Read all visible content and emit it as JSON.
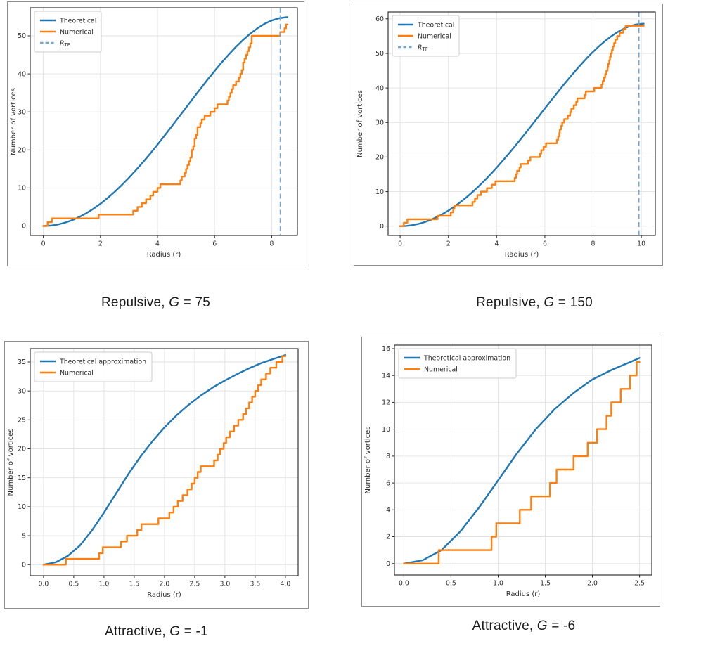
{
  "colors": {
    "theoretical": "#1f77b4",
    "numerical": "#ff7f0e",
    "rtf_line": "#6fa8d6",
    "grid": "#e2e2e2",
    "spine": "#222222",
    "tick_text": "#2b2b2b",
    "legend_border": "#cccccc",
    "caption_text": "#1b1b1b"
  },
  "chart_data": [
    {
      "id": "repulsive-g75",
      "type": "line",
      "caption": {
        "prefix": "Repulsive, ",
        "variable": "G",
        "suffix": " = 75"
      },
      "xlabel": "Radius (r)",
      "ylabel": "Number of vortices",
      "xlim": [
        -0.457,
        8.9
      ],
      "ylim": [
        -2.5,
        57.4
      ],
      "grid": true,
      "xticks": {
        "values": [
          0,
          2,
          4,
          6,
          8
        ],
        "labels": [
          "0",
          "2",
          "4",
          "6",
          "8"
        ]
      },
      "yticks": {
        "values": [
          0,
          10,
          20,
          30,
          40,
          50
        ],
        "labels": [
          "0",
          "10",
          "20",
          "30",
          "40",
          "50"
        ]
      },
      "legend": {
        "position": "upper-left",
        "entries": [
          {
            "label": "Theoretical",
            "color_key": "theoretical",
            "dashed": false
          },
          {
            "label": "Numerical",
            "color_key": "numerical",
            "dashed": false
          },
          {
            "label": "R",
            "sub": "TF",
            "color_key": "rtf_line",
            "dashed": true
          }
        ]
      },
      "series": [
        {
          "name": "Theoretical",
          "type": "smooth",
          "color_key": "theoretical",
          "points": [
            [
              0,
              0
            ],
            [
              0.25,
              0.09
            ],
            [
              0.5,
              0.37
            ],
            [
              0.75,
              0.84
            ],
            [
              1,
              1.49
            ],
            [
              1.25,
              2.32
            ],
            [
              1.5,
              3.33
            ],
            [
              1.75,
              4.5
            ],
            [
              2,
              5.84
            ],
            [
              2.25,
              7.34
            ],
            [
              2.5,
              8.99
            ],
            [
              2.75,
              10.77
            ],
            [
              3,
              12.69
            ],
            [
              3.25,
              14.73
            ],
            [
              3.5,
              16.86
            ],
            [
              3.75,
              19.1
            ],
            [
              4,
              21.4
            ],
            [
              4.25,
              23.8
            ],
            [
              4.5,
              26.2
            ],
            [
              4.75,
              28.68
            ],
            [
              5,
              31.13
            ],
            [
              5.25,
              33.62
            ],
            [
              5.5,
              36.03
            ],
            [
              5.75,
              38.46
            ],
            [
              6,
              40.76
            ],
            [
              6.25,
              43.03
            ],
            [
              6.5,
              45.12
            ],
            [
              6.75,
              47.14
            ],
            [
              7,
              48.93
            ],
            [
              7.25,
              50.6
            ],
            [
              7.5,
              51.98
            ],
            [
              7.75,
              53.18
            ],
            [
              8,
              54.05
            ],
            [
              8.25,
              54.63
            ],
            [
              8.5,
              54.89
            ],
            [
              8.55,
              54.9
            ]
          ]
        },
        {
          "name": "Numerical",
          "type": "step",
          "color_key": "numerical",
          "start_x": 0,
          "end_x": 8.55,
          "jump_radii": [
            0.15,
            0.3,
            1.94,
            3.15,
            3.3,
            3.45,
            3.6,
            3.75,
            3.85,
            4.0,
            4.1,
            4.8,
            4.85,
            4.95,
            5.0,
            5.05,
            5.1,
            5.15,
            5.2,
            5.2,
            5.25,
            5.3,
            5.3,
            5.35,
            5.4,
            5.4,
            5.5,
            5.55,
            5.65,
            5.85,
            6.0,
            6.1,
            6.45,
            6.5,
            6.55,
            6.6,
            6.65,
            6.75,
            6.85,
            6.9,
            6.95,
            7.0,
            7.0,
            7.05,
            7.1,
            7.15,
            7.2,
            7.25,
            7.3,
            7.3,
            8.3,
            8.45,
            8.5
          ]
        },
        {
          "name": "R_TF",
          "type": "vline",
          "color_key": "rtf_line",
          "x": 8.3,
          "dashed": true
        }
      ]
    },
    {
      "id": "repulsive-g150",
      "type": "line",
      "caption": {
        "prefix": "Repulsive, ",
        "variable": "G",
        "suffix": " = 150"
      },
      "xlabel": "Radius (r)",
      "ylabel": "Number of vortices",
      "xlim": [
        -0.5,
        10.58
      ],
      "ylim": [
        -2.7,
        62.0
      ],
      "grid": true,
      "xticks": {
        "values": [
          0,
          2,
          4,
          6,
          8,
          10
        ],
        "labels": [
          "0",
          "2",
          "4",
          "6",
          "8",
          "10"
        ]
      },
      "yticks": {
        "values": [
          0,
          10,
          20,
          30,
          40,
          50,
          60
        ],
        "labels": [
          "0",
          "10",
          "20",
          "30",
          "40",
          "50",
          "60"
        ]
      },
      "legend": {
        "position": "upper-left",
        "entries": [
          {
            "label": "Theoretical",
            "color_key": "theoretical",
            "dashed": false
          },
          {
            "label": "Numerical",
            "color_key": "numerical",
            "dashed": false
          },
          {
            "label": "R",
            "sub": "TF",
            "color_key": "rtf_line",
            "dashed": true
          }
        ]
      },
      "series": [
        {
          "name": "Theoretical",
          "type": "smooth",
          "color_key": "theoretical",
          "points": [
            [
              0,
              0
            ],
            [
              0.25,
              0.07
            ],
            [
              0.5,
              0.29
            ],
            [
              0.75,
              0.64
            ],
            [
              1,
              1.14
            ],
            [
              1.25,
              1.78
            ],
            [
              1.5,
              2.56
            ],
            [
              1.75,
              3.47
            ],
            [
              2,
              4.51
            ],
            [
              2.25,
              5.67
            ],
            [
              2.5,
              6.96
            ],
            [
              2.75,
              8.37
            ],
            [
              3,
              9.88
            ],
            [
              3.25,
              11.51
            ],
            [
              3.5,
              13.23
            ],
            [
              3.75,
              15.05
            ],
            [
              4,
              16.94
            ],
            [
              4.25,
              18.92
            ],
            [
              4.5,
              20.96
            ],
            [
              4.75,
              23.06
            ],
            [
              5,
              25.2
            ],
            [
              5.25,
              27.39
            ],
            [
              5.5,
              29.6
            ],
            [
              5.75,
              31.84
            ],
            [
              6,
              34.06
            ],
            [
              6.25,
              36.29
            ],
            [
              6.5,
              38.49
            ],
            [
              6.75,
              40.66
            ],
            [
              7,
              42.78
            ],
            [
              7.25,
              44.84
            ],
            [
              7.5,
              46.81
            ],
            [
              7.75,
              48.7
            ],
            [
              8,
              50.46
            ],
            [
              8.25,
              52.12
            ],
            [
              8.5,
              53.61
            ],
            [
              8.75,
              54.95
            ],
            [
              9,
              56.11
            ],
            [
              9.25,
              57.08
            ],
            [
              9.5,
              57.82
            ],
            [
              9.75,
              58.33
            ],
            [
              10,
              58.57
            ],
            [
              10.1,
              58.6
            ]
          ]
        },
        {
          "name": "Numerical",
          "type": "step",
          "color_key": "numerical",
          "start_x": 0,
          "end_x": 10.1,
          "jump_radii": [
            0.15,
            0.3,
            1.55,
            2.1,
            2.2,
            2.25,
            3.0,
            3.1,
            3.2,
            3.35,
            3.6,
            3.8,
            3.95,
            4.75,
            4.8,
            4.85,
            4.95,
            5.0,
            5.3,
            5.4,
            5.8,
            5.85,
            5.95,
            6.05,
            6.5,
            6.55,
            6.6,
            6.62,
            6.67,
            6.72,
            6.8,
            6.95,
            7.05,
            7.1,
            7.2,
            7.3,
            7.35,
            7.65,
            7.7,
            8.05,
            8.35,
            8.4,
            8.45,
            8.5,
            8.55,
            8.6,
            8.63,
            8.67,
            8.7,
            8.73,
            8.78,
            8.82,
            8.87,
            8.92,
            9.0,
            9.1,
            9.25,
            9.35
          ]
        },
        {
          "name": "R_TF",
          "type": "vline",
          "color_key": "rtf_line",
          "x": 9.9,
          "dashed": true
        }
      ]
    },
    {
      "id": "attractive-g-1",
      "type": "line",
      "caption": {
        "prefix": "Attractive, ",
        "variable": "G",
        "suffix": " = -1"
      },
      "xlabel": "Radius (r)",
      "ylabel": "Number of vortices",
      "xlim": [
        -0.22,
        4.21
      ],
      "ylim": [
        -1.9,
        37.3
      ],
      "grid": true,
      "xticks": {
        "values": [
          0,
          0.5,
          1,
          1.5,
          2,
          2.5,
          3,
          3.5,
          4
        ],
        "labels": [
          "0.0",
          "0.5",
          "1.0",
          "1.5",
          "2.0",
          "2.5",
          "3.0",
          "3.5",
          "4.0"
        ]
      },
      "yticks": {
        "values": [
          0,
          5,
          10,
          15,
          20,
          25,
          30,
          35
        ],
        "labels": [
          "0",
          "5",
          "10",
          "15",
          "20",
          "25",
          "30",
          "35"
        ]
      },
      "legend": {
        "position": "upper-left",
        "entries": [
          {
            "label": "Theoretical approximation",
            "color_key": "theoretical",
            "dashed": false
          },
          {
            "label": "Numerical",
            "color_key": "numerical",
            "dashed": false
          }
        ]
      },
      "series": [
        {
          "name": "Theoretical approximation",
          "type": "smooth",
          "color_key": "theoretical",
          "points": [
            [
              0,
              0
            ],
            [
              0.2,
              0.4
            ],
            [
              0.4,
              1.5
            ],
            [
              0.6,
              3.3
            ],
            [
              0.8,
              5.9
            ],
            [
              1,
              9.0
            ],
            [
              1.2,
              12.3
            ],
            [
              1.4,
              15.6
            ],
            [
              1.6,
              18.6
            ],
            [
              1.8,
              21.3
            ],
            [
              2,
              23.7
            ],
            [
              2.2,
              25.8
            ],
            [
              2.4,
              27.6
            ],
            [
              2.6,
              29.2
            ],
            [
              2.8,
              30.6
            ],
            [
              3,
              31.8
            ],
            [
              3.2,
              32.9
            ],
            [
              3.4,
              33.9
            ],
            [
              3.6,
              34.8
            ],
            [
              3.8,
              35.5
            ],
            [
              4,
              36.2
            ]
          ]
        },
        {
          "name": "Numerical",
          "type": "step",
          "color_key": "numerical",
          "start_x": 0,
          "end_x": 4.0,
          "jump_radii": [
            0.37,
            0.92,
            0.98,
            1.28,
            1.38,
            1.55,
            1.62,
            1.9,
            2.08,
            2.15,
            2.22,
            2.3,
            2.38,
            2.45,
            2.5,
            2.55,
            2.6,
            2.82,
            2.88,
            2.92,
            2.98,
            3.02,
            3.08,
            3.15,
            3.22,
            3.3,
            3.35,
            3.4,
            3.45,
            3.5,
            3.55,
            3.6,
            3.68,
            3.75,
            3.85,
            3.95
          ]
        }
      ]
    },
    {
      "id": "attractive-g-6",
      "type": "line",
      "caption": {
        "prefix": "Attractive, ",
        "variable": "G",
        "suffix": " = -6"
      },
      "xlabel": "Radius (r)",
      "ylabel": "Number of vortices",
      "xlim": [
        -0.1,
        2.63
      ],
      "ylim": [
        -0.85,
        16.26
      ],
      "grid": true,
      "xticks": {
        "values": [
          0,
          0.5,
          1,
          1.5,
          2,
          2.5
        ],
        "labels": [
          "0.0",
          "0.5",
          "1.0",
          "1.5",
          "2.0",
          "2.5"
        ]
      },
      "yticks": {
        "values": [
          0,
          2,
          4,
          6,
          8,
          10,
          12,
          14,
          16
        ],
        "labels": [
          "0",
          "2",
          "4",
          "6",
          "8",
          "10",
          "12",
          "14",
          "16"
        ]
      },
      "legend": {
        "position": "upper-left",
        "entries": [
          {
            "label": "Theoretical approximation",
            "color_key": "theoretical",
            "dashed": false
          },
          {
            "label": "Numerical",
            "color_key": "numerical",
            "dashed": false
          }
        ]
      },
      "series": [
        {
          "name": "Theoretical approximation",
          "type": "smooth",
          "color_key": "theoretical",
          "points": [
            [
              0,
              0
            ],
            [
              0.2,
              0.25
            ],
            [
              0.4,
              1.0
            ],
            [
              0.6,
              2.4
            ],
            [
              0.8,
              4.2
            ],
            [
              1,
              6.2
            ],
            [
              1.2,
              8.2
            ],
            [
              1.4,
              10.0
            ],
            [
              1.6,
              11.5
            ],
            [
              1.8,
              12.7
            ],
            [
              2,
              13.7
            ],
            [
              2.2,
              14.4
            ],
            [
              2.4,
              15.0
            ],
            [
              2.5,
              15.3
            ]
          ]
        },
        {
          "name": "Numerical",
          "type": "step",
          "color_key": "numerical",
          "start_x": 0,
          "end_x": 2.5,
          "jump_radii": [
            0.37,
            0.93,
            0.98,
            1.23,
            1.35,
            1.55,
            1.62,
            1.8,
            1.95,
            2.05,
            2.15,
            2.2,
            2.3,
            2.4,
            2.47
          ]
        }
      ]
    }
  ]
}
